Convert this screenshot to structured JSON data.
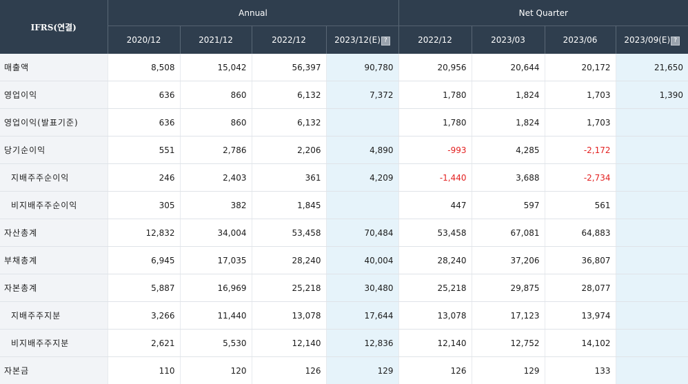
{
  "header": {
    "corner": "IFRS(연결)",
    "annual": "Annual",
    "quarter": "Net Quarter",
    "columns": [
      "2020/12",
      "2021/12",
      "2022/12",
      "2023/12(E)",
      "2022/12",
      "2023/03",
      "2023/06",
      "2023/09(E)"
    ],
    "estimate_icon": "help-icon"
  },
  "rows": [
    {
      "label": "매출액",
      "values": [
        "8,508",
        "15,042",
        "56,397",
        "90,780",
        "20,956",
        "20,644",
        "20,172",
        "21,650"
      ]
    },
    {
      "label": "영업이익",
      "values": [
        "636",
        "860",
        "6,132",
        "7,372",
        "1,780",
        "1,824",
        "1,703",
        "1,390"
      ]
    },
    {
      "label": "영업이익(발표기준)",
      "values": [
        "636",
        "860",
        "6,132",
        "",
        "1,780",
        "1,824",
        "1,703",
        ""
      ]
    },
    {
      "label": "당기순이익",
      "values": [
        "551",
        "2,786",
        "2,206",
        "4,890",
        "-993",
        "4,285",
        "-2,172",
        ""
      ]
    },
    {
      "label": "지배주주순이익",
      "values": [
        "246",
        "2,403",
        "361",
        "4,209",
        "-1,440",
        "3,688",
        "-2,734",
        ""
      ]
    },
    {
      "label": "비지배주주순이익",
      "values": [
        "305",
        "382",
        "1,845",
        "",
        "447",
        "597",
        "561",
        ""
      ]
    },
    {
      "label": "자산총계",
      "values": [
        "12,832",
        "34,004",
        "53,458",
        "70,484",
        "53,458",
        "67,081",
        "64,883",
        ""
      ]
    },
    {
      "label": "부채총계",
      "values": [
        "6,945",
        "17,035",
        "28,240",
        "40,004",
        "28,240",
        "37,206",
        "36,807",
        ""
      ]
    },
    {
      "label": "자본총계",
      "values": [
        "5,887",
        "16,969",
        "25,218",
        "30,480",
        "25,218",
        "29,875",
        "28,077",
        ""
      ]
    },
    {
      "label": "지배주주지분",
      "values": [
        "3,266",
        "11,440",
        "13,078",
        "17,644",
        "13,078",
        "17,123",
        "13,974",
        ""
      ]
    },
    {
      "label": "비지배주주지분",
      "values": [
        "2,621",
        "5,530",
        "12,140",
        "12,836",
        "12,140",
        "12,752",
        "14,102",
        ""
      ]
    },
    {
      "label": "자본금",
      "values": [
        "110",
        "120",
        "126",
        "129",
        "126",
        "129",
        "133",
        ""
      ]
    }
  ],
  "colors": {
    "header_bg": "#2f3e4e",
    "label_bg": "#f2f4f7",
    "estimate_bg": "#e6f3fa",
    "negative": "#e32020"
  }
}
